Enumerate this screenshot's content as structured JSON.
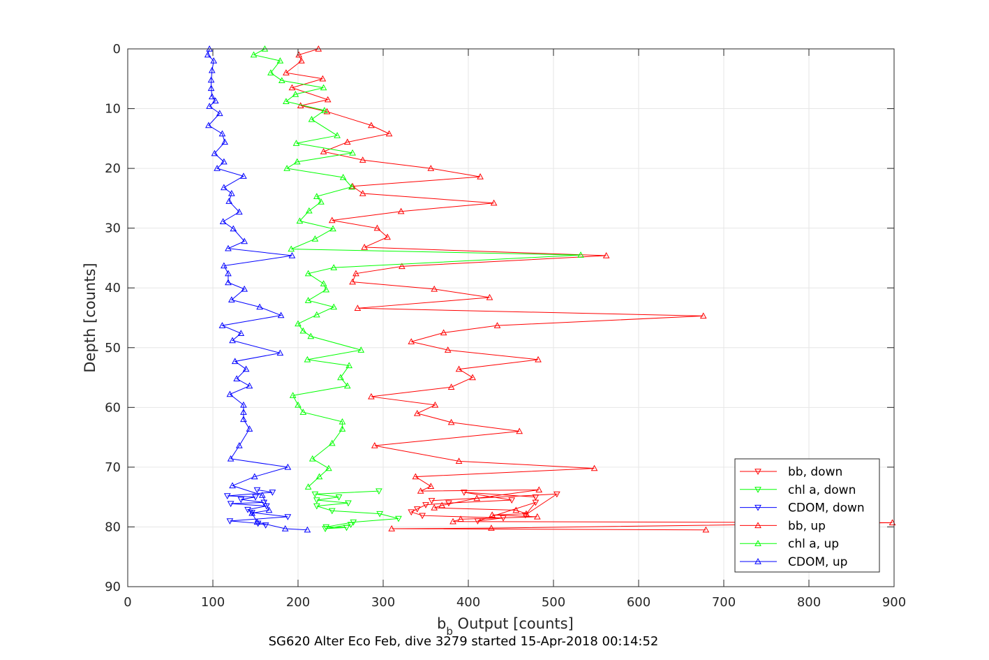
{
  "chart_data": {
    "type": "line",
    "caption": "SG620 Alter Eco Feb, dive 3279 started 15-Apr-2018 00:14:52",
    "xlabel_main": "b",
    "xlabel_sub": "b",
    "xlabel_rest": " Output [counts]",
    "ylabel": "Depth [counts]",
    "xlim": [
      0,
      900
    ],
    "ylim": [
      0,
      90
    ],
    "y_reversed": true,
    "grid": true,
    "x_ticks": [
      0,
      100,
      200,
      300,
      400,
      500,
      600,
      700,
      800,
      900
    ],
    "y_ticks": [
      0,
      10,
      20,
      30,
      40,
      50,
      60,
      70,
      80,
      90
    ],
    "legend_position": "bottom-right",
    "colors": {
      "red": "#ff0000",
      "green": "#00ff00",
      "blue": "#0000ff",
      "grid": "#e6e6e6",
      "axis": "#262626"
    },
    "series": [
      {
        "name": "bb, down",
        "color": "#ff0000",
        "marker": "down",
        "x": [
          479,
          395,
          451,
          377,
          350,
          340,
          333,
          346,
          441,
          411,
          479,
          467,
          504,
          357
        ],
        "y": [
          75.0,
          74.2,
          75.5,
          76.0,
          76.3,
          77.0,
          77.5,
          78.1,
          78.5,
          79.0,
          75.9,
          78.0,
          74.5,
          75.6
        ]
      },
      {
        "name": "chl a, down",
        "color": "#00ff00",
        "marker": "down",
        "x": [
          295,
          220,
          248,
          222,
          259,
          222,
          240,
          296,
          318,
          265,
          233,
          257,
          232,
          262
        ],
        "y": [
          74.0,
          74.5,
          75.0,
          75.5,
          76.0,
          76.5,
          77.3,
          77.8,
          78.6,
          79.2,
          80.0,
          80.1,
          80.3,
          79.6
        ]
      },
      {
        "name": "CDOM, down",
        "color": "#0000ff",
        "marker": "down",
        "x": [
          152,
          170,
          117,
          150,
          133,
          160,
          121,
          163,
          141,
          146,
          188,
          120,
          153,
          162
        ],
        "y": [
          73.8,
          74.2,
          74.8,
          75.0,
          75.4,
          75.9,
          76.1,
          76.5,
          77.1,
          77.6,
          78.3,
          79.0,
          79.4,
          79.7
        ]
      },
      {
        "name": "bb, up",
        "color": "#ff0000",
        "marker": "up",
        "x": [
          224,
          201,
          204,
          186,
          229,
          193,
          235,
          203,
          234,
          286,
          307,
          258,
          230,
          276,
          356,
          414,
          264,
          276,
          430,
          321,
          240,
          293,
          305,
          278,
          562,
          322,
          268,
          264,
          360,
          425,
          270,
          676,
          434,
          371,
          333,
          376,
          482,
          389,
          405,
          380,
          286,
          361,
          340,
          380,
          460,
          290,
          389,
          548,
          338,
          356,
          344,
          483,
          410,
          369,
          360,
          456,
          468,
          428,
          481,
          391,
          382,
          898,
          427,
          310,
          679
        ],
        "y": [
          0,
          1,
          2,
          4,
          5,
          6.5,
          8.5,
          9.5,
          10.5,
          12.8,
          14.2,
          15.6,
          17.2,
          18.6,
          20.0,
          21.4,
          23.0,
          24.2,
          25.8,
          27.2,
          28.7,
          30.0,
          31.5,
          33.2,
          34.6,
          36.4,
          37.6,
          39.0,
          40.2,
          41.6,
          43.4,
          44.7,
          46.3,
          47.5,
          49.0,
          50.4,
          52.0,
          53.6,
          55.0,
          56.6,
          58.2,
          59.6,
          61.0,
          62.5,
          64.0,
          66.4,
          69.0,
          70.2,
          71.6,
          73.2,
          74.0,
          73.8,
          75.2,
          76.4,
          76.8,
          77.2,
          77.8,
          78.0,
          78.3,
          78.7,
          79.1,
          79.3,
          80.2,
          80.3,
          80.5
        ]
      },
      {
        "name": "chl a, up",
        "color": "#00ff00",
        "marker": "up",
        "x": [
          161,
          148,
          179,
          168,
          181,
          230,
          197,
          186,
          231,
          216,
          246,
          198,
          264,
          199,
          187,
          253,
          263,
          222,
          227,
          213,
          202,
          241,
          220,
          192,
          532,
          242,
          212,
          230,
          233,
          212,
          242,
          222,
          200,
          206,
          215,
          274,
          211,
          260,
          250,
          258,
          194,
          200,
          206,
          252,
          252,
          240,
          217,
          236,
          225,
          212
        ],
        "y": [
          0,
          1,
          2,
          4,
          5.3,
          6.5,
          7.6,
          8.8,
          10.3,
          11.8,
          14.5,
          15.8,
          17.4,
          18.9,
          20.0,
          21.5,
          23.1,
          24.7,
          25.6,
          27.1,
          28.8,
          30.1,
          31.8,
          33.5,
          34.5,
          36.6,
          37.6,
          39.3,
          40.3,
          42.1,
          43.2,
          44.5,
          46.0,
          47.2,
          48.1,
          50.4,
          52.0,
          53.0,
          55.0,
          56.4,
          58.0,
          59.6,
          60.8,
          62.4,
          63.6,
          66.0,
          68.6,
          70.2,
          71.6,
          73.3
        ]
      },
      {
        "name": "CDOM, up",
        "color": "#0000ff",
        "marker": "up",
        "x": [
          96,
          94,
          101,
          99,
          98,
          98,
          99,
          103,
          96,
          108,
          95,
          111,
          114,
          102,
          113,
          105,
          136,
          113,
          122,
          119,
          131,
          112,
          124,
          137,
          118,
          193,
          113,
          118,
          118,
          137,
          122,
          155,
          180,
          111,
          133,
          123,
          179,
          126,
          139,
          128,
          143,
          120,
          136,
          136,
          136,
          143,
          131,
          121,
          188,
          149,
          123,
          158,
          166,
          146,
          152,
          185,
          211
        ],
        "y": [
          0,
          1,
          2,
          3.6,
          5.2,
          6.6,
          8.0,
          8.7,
          9.6,
          10.8,
          12.8,
          14.2,
          15.6,
          17.5,
          18.9,
          20.0,
          21.3,
          23.2,
          24.2,
          25.5,
          27.3,
          28.9,
          30.1,
          32.2,
          33.4,
          34.6,
          36.3,
          37.6,
          39.1,
          40.2,
          42.0,
          43.2,
          44.6,
          46.3,
          47.6,
          48.8,
          50.9,
          52.3,
          53.6,
          55.2,
          56.4,
          57.8,
          59.6,
          60.8,
          62.0,
          63.6,
          66.4,
          68.6,
          70.0,
          71.6,
          73.1,
          74.7,
          77.2,
          77.7,
          79.2,
          80.3,
          80.5
        ]
      }
    ]
  }
}
